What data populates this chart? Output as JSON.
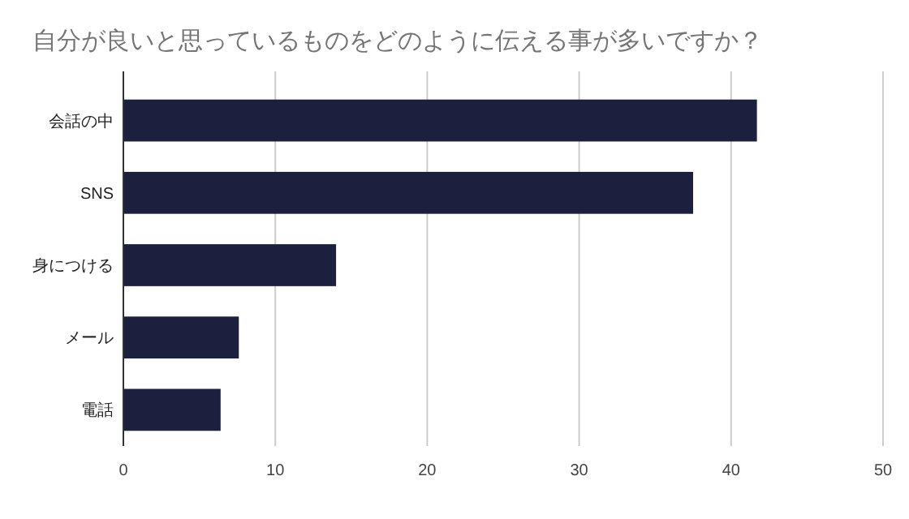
{
  "chart_data": {
    "type": "bar",
    "orientation": "horizontal",
    "title": "自分が良いと思っているものをどのように伝える事が多いですか？",
    "categories": [
      "会話の中",
      "SNS",
      "身につける",
      "メール",
      "電話"
    ],
    "values": [
      41.7,
      37.5,
      14,
      7.6,
      6.4
    ],
    "color": "#1c1f3d",
    "xlim": [
      0,
      50
    ],
    "xticks": [
      0,
      10,
      20,
      30,
      40,
      50
    ],
    "grid": "x"
  }
}
